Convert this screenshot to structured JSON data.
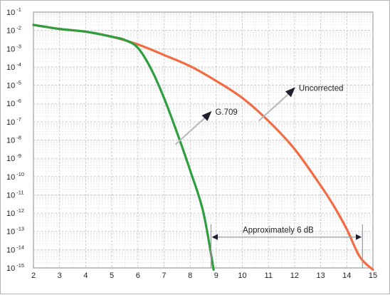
{
  "chart_data": {
    "type": "line",
    "title": "",
    "xlabel": "",
    "ylabel": "",
    "x_scale": "linear",
    "y_scale": "log",
    "xlim": [
      2,
      15
    ],
    "ylim": [
      1e-15,
      0.1
    ],
    "grid": true,
    "x_ticks": [
      "2",
      "3",
      "4",
      "5",
      "6",
      "7",
      "8",
      "9",
      "10",
      "11",
      "12",
      "13",
      "14",
      "15"
    ],
    "y_ticks": [
      {
        "base": "10",
        "exp": "-1"
      },
      {
        "base": "10",
        "exp": "-2"
      },
      {
        "base": "10",
        "exp": "-3"
      },
      {
        "base": "10",
        "exp": "-4"
      },
      {
        "base": "10",
        "exp": "-5"
      },
      {
        "base": "10",
        "exp": "-6"
      },
      {
        "base": "10",
        "exp": "-7"
      },
      {
        "base": "10",
        "exp": "-8"
      },
      {
        "base": "10",
        "exp": "-9"
      },
      {
        "base": "10",
        "exp": "-10"
      },
      {
        "base": "10",
        "exp": "-11"
      },
      {
        "base": "10",
        "exp": "-12"
      },
      {
        "base": "10",
        "exp": "-13"
      },
      {
        "base": "10",
        "exp": "-14"
      },
      {
        "base": "10",
        "exp": "-15"
      }
    ],
    "series": [
      {
        "name": "Uncorrected",
        "color": "#f26b43",
        "x": [
          2.0,
          3.0,
          4.0,
          5.0,
          6.0,
          7.0,
          8.0,
          9.0,
          10.0,
          11.0,
          12.0,
          13.0,
          13.5,
          14.0,
          14.5,
          15.0
        ],
        "y": [
          0.02,
          0.012,
          0.0085,
          0.0045,
          0.0017,
          0.00045,
          0.00011,
          1.7e-05,
          2e-06,
          1.1e-07,
          3.2e-09,
          3.2e-11,
          2.5e-12,
          1.3e-13,
          4e-15,
          8e-16
        ]
      },
      {
        "name": "G.709",
        "color": "#2e9e3f",
        "x": [
          2.0,
          3.0,
          4.0,
          5.0,
          5.5,
          6.0,
          6.5,
          7.0,
          7.5,
          8.0,
          8.5,
          8.9
        ],
        "y": [
          0.02,
          0.012,
          0.0085,
          0.0045,
          0.003,
          0.0011,
          8e-05,
          2e-06,
          2.5e-08,
          2.2e-10,
          1.2e-12,
          8e-16
        ]
      }
    ],
    "annotations": [
      {
        "text": "Uncorrected",
        "target_series": "Uncorrected",
        "target_x": 10.8
      },
      {
        "text": "G.709",
        "target_series": "G.709",
        "target_x": 7.6
      },
      {
        "text": "Approximately 6 dB",
        "from_x": 8.8,
        "to_x": 14.6,
        "at_y": 1e-13
      }
    ]
  }
}
